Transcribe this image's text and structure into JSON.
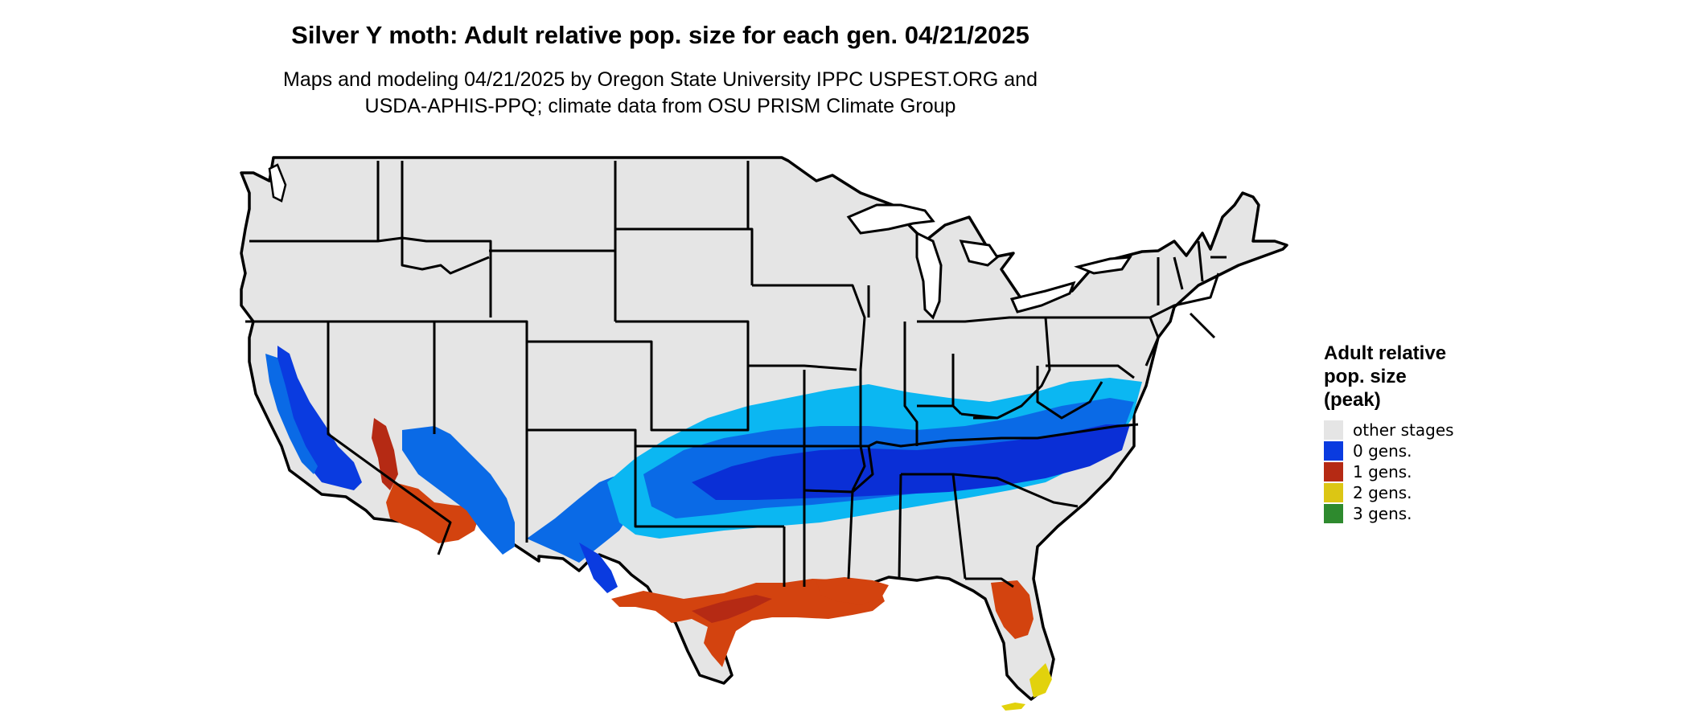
{
  "title": "Silver Y moth: Adult relative pop. size for each gen. 04/21/2025",
  "subtitle_line1": "Maps and modeling 04/21/2025 by Oregon State University IPPC USPEST.ORG and",
  "subtitle_line2": "USDA-APHIS-PPQ; climate data from OSU PRISM Climate Group",
  "legend": {
    "title_line1": "Adult relative",
    "title_line2": "pop. size",
    "title_line3": "(peak)",
    "items": [
      {
        "label": "other stages",
        "color": "#e5e5e5"
      },
      {
        "label": "0 gens.",
        "color": "#0a3be0"
      },
      {
        "label": "1 gens.",
        "color": "#b52a14"
      },
      {
        "label": "2 gens.",
        "color": "#dcc614"
      },
      {
        "label": "3 gens.",
        "color": "#2e8a2e"
      }
    ]
  },
  "colors": {
    "land": "#e5e5e5",
    "border": "#000000",
    "light_blue": "#0bb7f2",
    "mid_blue": "#0a6ae6",
    "dark_blue": "#0a2fd6",
    "red": "#d3430f",
    "dark_red": "#b52a14",
    "yellow": "#e2d20c"
  }
}
